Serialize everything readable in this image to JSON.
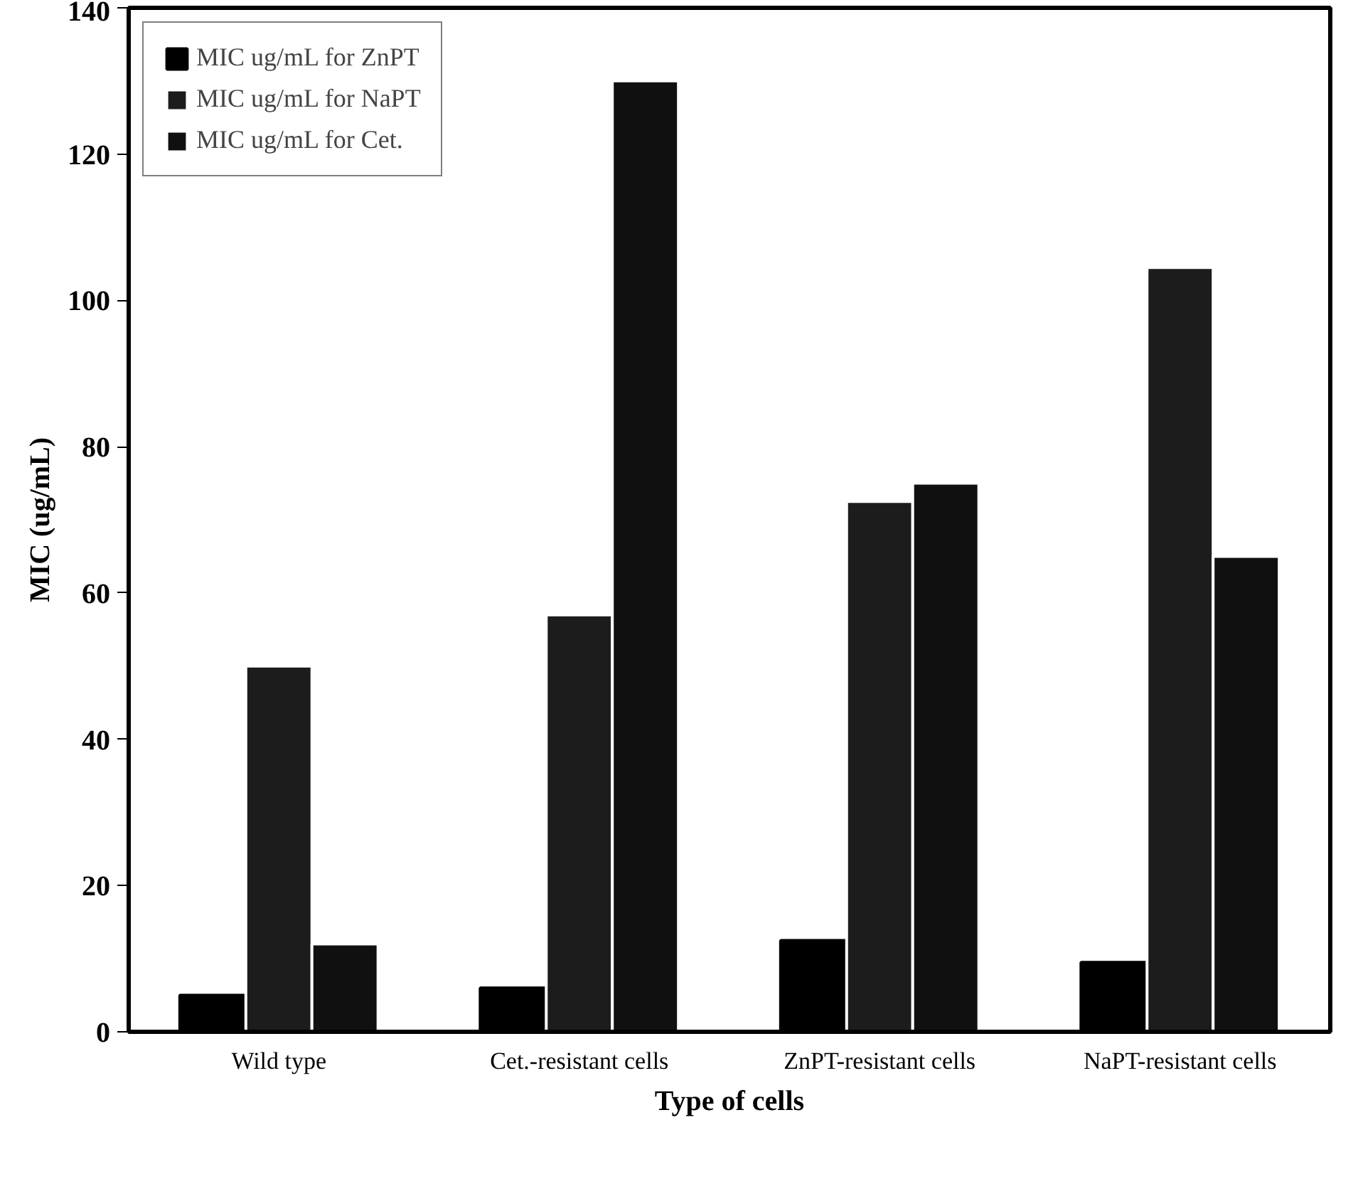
{
  "chart_data": {
    "type": "bar",
    "xlabel": "Type of cells",
    "ylabel": "MIC (ug/mL)",
    "categories": [
      "Wild type",
      "Cet.-resistant cells",
      "ZnPT-resistant cells",
      "NaPT-resistant cells"
    ],
    "series": [
      {
        "name": "MIC ug/mL for ZnPT",
        "color": "#000000",
        "values": [
          5,
          6,
          12.5,
          9.5
        ]
      },
      {
        "name": "MIC ug/mL for NaPT",
        "color": "#1c1c1c",
        "values": [
          50,
          57,
          72.5,
          104.5
        ]
      },
      {
        "name": "MIC ug/mL for Cet.",
        "color": "#101010",
        "values": [
          12,
          130,
          75,
          65
        ]
      }
    ],
    "ylim": [
      0,
      140
    ],
    "yticks": [
      0,
      20,
      40,
      60,
      80,
      100,
      120,
      140
    ],
    "legend": "top left",
    "grid": false
  }
}
